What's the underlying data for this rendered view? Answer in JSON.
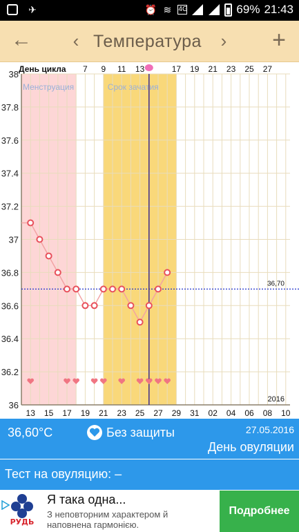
{
  "status_bar": {
    "battery": "69%",
    "time": "21:43",
    "left_icons": [
      "instagram-icon",
      "cursor-icon"
    ],
    "right_icons": [
      "alarm-icon",
      "wifi-icon",
      "4g-icon",
      "signal-icon",
      "signal-icon",
      "battery-icon"
    ]
  },
  "toolbar": {
    "back_icon": "←",
    "prev_icon": "‹",
    "title": "Температура",
    "next_icon": "›",
    "add_icon": "+"
  },
  "chart_data": {
    "type": "line",
    "xlabel": "День цикла",
    "year_label": "2016",
    "top_tick_labels": [
      "7",
      "9",
      "11",
      "13",
      "",
      "17",
      "19",
      "21",
      "23",
      "25",
      "27"
    ],
    "bottom_tick_labels": [
      "13",
      "15",
      "17",
      "19",
      "21",
      "23",
      "25",
      "27",
      "29",
      "31",
      "02",
      "04",
      "06",
      "08",
      "10"
    ],
    "ylim": [
      36,
      38
    ],
    "yticks": [
      "38",
      "37.8",
      "37.6",
      "37.4",
      "37.2",
      "37",
      "36.8",
      "36.6",
      "36.4",
      "36.2",
      "36"
    ],
    "coverline": 36.7,
    "coverline_label": "36,70",
    "bands": [
      {
        "label": "Менструация",
        "from_date_index": 0,
        "to_date_index": 6,
        "color": "#fdd6d6"
      },
      {
        "label": "Срок зачатия",
        "from_date_index": 9,
        "to_date_index": 17,
        "color": "#f9d87a"
      }
    ],
    "selected_date_index": 14,
    "start_line_value": 37.1,
    "series": [
      {
        "x_index": [
          1,
          2,
          3,
          4,
          5,
          6,
          7,
          8,
          9,
          10,
          11,
          12,
          13,
          14,
          15,
          16
        ],
        "y": [
          37.1,
          37.0,
          36.9,
          36.8,
          36.7,
          36.7,
          36.6,
          36.6,
          36.7,
          36.7,
          36.7,
          36.6,
          36.5,
          36.6,
          36.7,
          36.8
        ]
      }
    ],
    "heart_markers": [
      1,
      5,
      6,
      8,
      9,
      11,
      13,
      14,
      15,
      16
    ],
    "ovulation_marker_index": 14,
    "colors": {
      "line": "#f2a3a3",
      "point": "#e8505b",
      "grid": "#e8dcbc",
      "coverline": "#2233cc",
      "selected": "#3a2a8a",
      "heart": "#f07582"
    }
  },
  "info": {
    "temperature": "36,60°C",
    "protection": "Без защиты",
    "date": "27.05.2016",
    "cycle_status": "День овуляции"
  },
  "test": {
    "label": "Тест на овуляцию: –"
  },
  "ad": {
    "brand": "РУДЬ",
    "title": "Я така одна...",
    "description": "З неповторним характером й наповнена гармонією.",
    "cta": "Подробнее"
  }
}
